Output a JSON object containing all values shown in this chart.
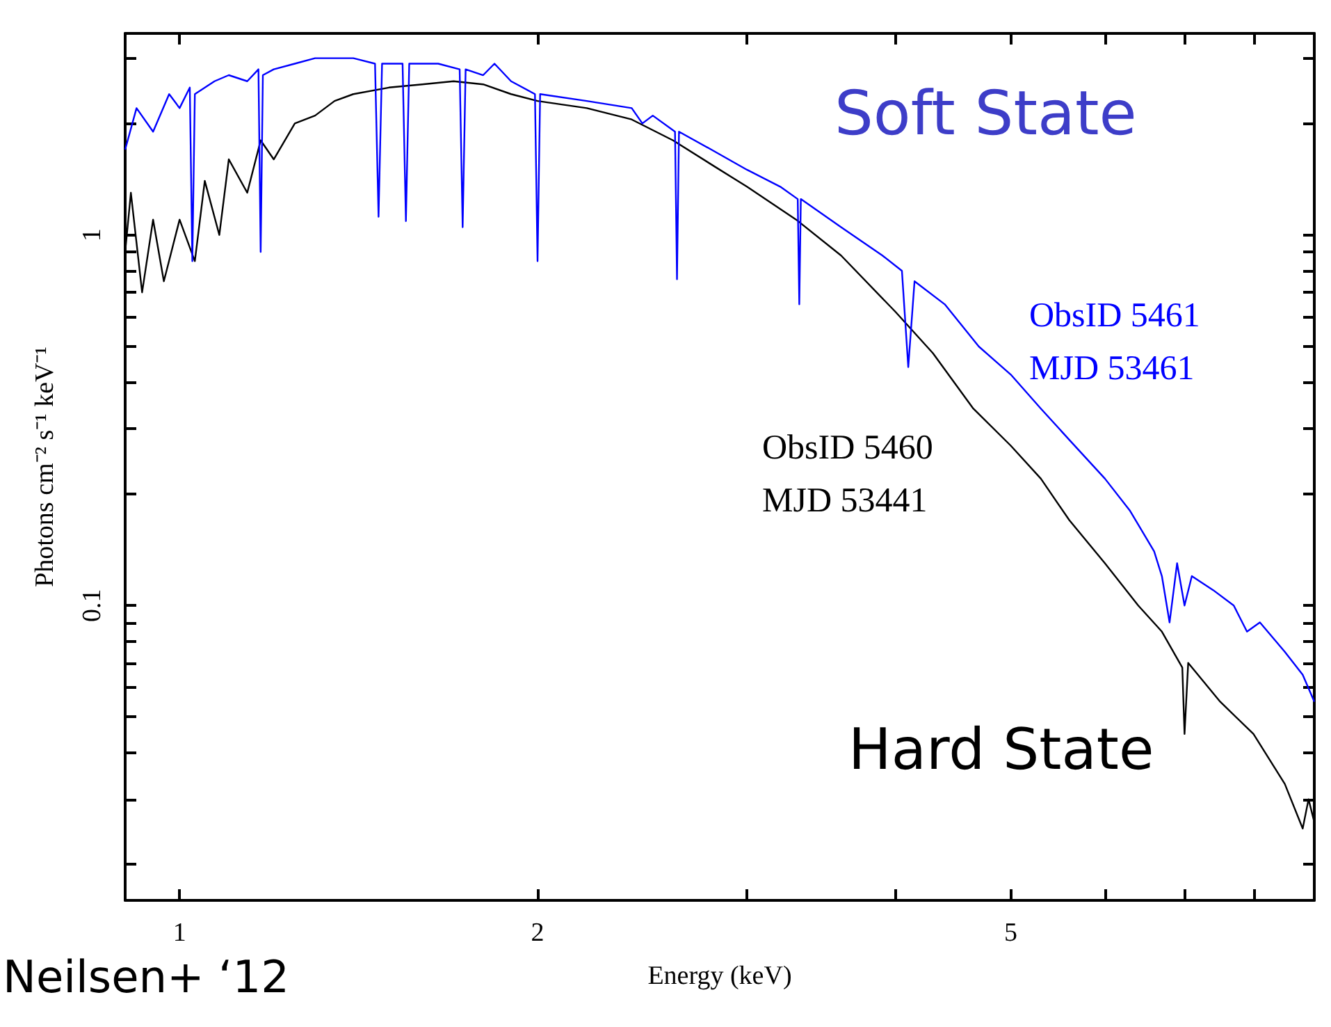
{
  "chart_data": {
    "type": "line",
    "xlabel": "Energy (keV)",
    "ylabel": "Photons cm⁻² s⁻¹ keV⁻¹",
    "log": "xy",
    "grid": false,
    "legend": false,
    "marker": "none",
    "xlim": [
      0.9,
      9
    ],
    "xticks": [
      1,
      2,
      {
        "value": 3,
        "label": null
      },
      {
        "value": 4,
        "label": null
      },
      5,
      {
        "value": 6,
        "label": null
      },
      {
        "value": 7,
        "label": null
      },
      {
        "value": 8,
        "label": null
      },
      {
        "value": 9,
        "label": null
      }
    ],
    "ylim": [
      0.016,
      3.5
    ],
    "yticks": [
      {
        "value": 0.02,
        "label": null
      },
      {
        "value": 0.03,
        "label": null
      },
      {
        "value": 0.04,
        "label": null
      },
      {
        "value": 0.05,
        "label": null
      },
      {
        "value": 0.06,
        "label": null
      },
      {
        "value": 0.07,
        "label": null
      },
      {
        "value": 0.08,
        "label": null
      },
      {
        "value": 0.09,
        "label": null
      },
      0.1,
      {
        "value": 0.2,
        "label": null
      },
      {
        "value": 0.3,
        "label": null
      },
      {
        "value": 0.4,
        "label": null
      },
      {
        "value": 0.5,
        "label": null
      },
      {
        "value": 0.6,
        "label": null
      },
      {
        "value": 0.7,
        "label": null
      },
      {
        "value": 0.8,
        "label": null
      },
      {
        "value": 0.9,
        "label": null
      },
      1,
      {
        "value": 2,
        "label": null
      },
      {
        "value": 3,
        "label": null
      }
    ],
    "annotations": [
      "Soft State",
      "Hard State",
      "Neilsen+ ‘12"
    ],
    "series": [
      {
        "name": "ObsID 5460\nMJD 53441",
        "color": "#000000",
        "x": [
          0.9,
          0.91,
          0.93,
          0.95,
          0.97,
          1.0,
          1.03,
          1.05,
          1.08,
          1.1,
          1.14,
          1.17,
          1.2,
          1.25,
          1.3,
          1.35,
          1.4,
          1.5,
          1.6,
          1.7,
          1.8,
          1.9,
          2.0,
          2.2,
          2.4,
          2.6,
          2.8,
          3.0,
          3.3,
          3.6,
          4.0,
          4.3,
          4.65,
          5.0,
          5.3,
          5.6,
          6.0,
          6.4,
          6.7,
          6.97,
          7.0,
          7.05,
          7.5,
          8.0,
          8.5,
          8.8,
          8.9,
          9.0
        ],
        "values": [
          0.9,
          1.3,
          0.7,
          1.1,
          0.75,
          1.1,
          0.85,
          1.4,
          1.0,
          1.6,
          1.3,
          1.8,
          1.6,
          2.0,
          2.1,
          2.3,
          2.4,
          2.5,
          2.55,
          2.6,
          2.55,
          2.4,
          2.3,
          2.2,
          2.05,
          1.8,
          1.55,
          1.35,
          1.1,
          0.88,
          0.62,
          0.48,
          0.34,
          0.27,
          0.22,
          0.17,
          0.13,
          0.1,
          0.085,
          0.068,
          0.045,
          0.07,
          0.055,
          0.045,
          0.033,
          0.025,
          0.03,
          0.026
        ]
      },
      {
        "name": "ObsID 5461\nMJD 53461",
        "color": "#0000ff",
        "x": [
          0.9,
          0.92,
          0.95,
          0.98,
          1.0,
          1.02,
          1.025,
          1.03,
          1.07,
          1.1,
          1.14,
          1.165,
          1.17,
          1.175,
          1.2,
          1.25,
          1.3,
          1.35,
          1.4,
          1.46,
          1.47,
          1.48,
          1.54,
          1.55,
          1.56,
          1.65,
          1.72,
          1.73,
          1.74,
          1.8,
          1.84,
          1.9,
          1.99,
          2.0,
          2.01,
          2.2,
          2.4,
          2.45,
          2.5,
          2.61,
          2.62,
          2.63,
          2.8,
          3.0,
          3.2,
          3.31,
          3.32,
          3.33,
          3.6,
          3.9,
          4.05,
          4.1,
          4.15,
          4.4,
          4.7,
          5.0,
          5.3,
          5.6,
          6.0,
          6.3,
          6.6,
          6.7,
          6.8,
          6.9,
          7.0,
          7.1,
          7.4,
          7.7,
          7.9,
          8.1,
          8.5,
          8.8,
          9.0
        ],
        "values": [
          1.7,
          2.2,
          1.9,
          2.4,
          2.2,
          2.5,
          0.85,
          2.4,
          2.6,
          2.7,
          2.6,
          2.8,
          0.9,
          2.7,
          2.8,
          2.9,
          3.0,
          3.0,
          3.0,
          2.9,
          1.12,
          2.9,
          2.9,
          1.09,
          2.9,
          2.9,
          2.8,
          1.05,
          2.8,
          2.7,
          2.9,
          2.6,
          2.4,
          0.85,
          2.4,
          2.3,
          2.2,
          2.0,
          2.1,
          1.9,
          0.76,
          1.9,
          1.7,
          1.5,
          1.35,
          1.25,
          0.65,
          1.25,
          1.05,
          0.88,
          0.8,
          0.44,
          0.75,
          0.65,
          0.5,
          0.42,
          0.34,
          0.28,
          0.22,
          0.18,
          0.14,
          0.12,
          0.09,
          0.13,
          0.1,
          0.12,
          0.11,
          0.1,
          0.085,
          0.09,
          0.075,
          0.065,
          0.055
        ]
      }
    ]
  }
}
